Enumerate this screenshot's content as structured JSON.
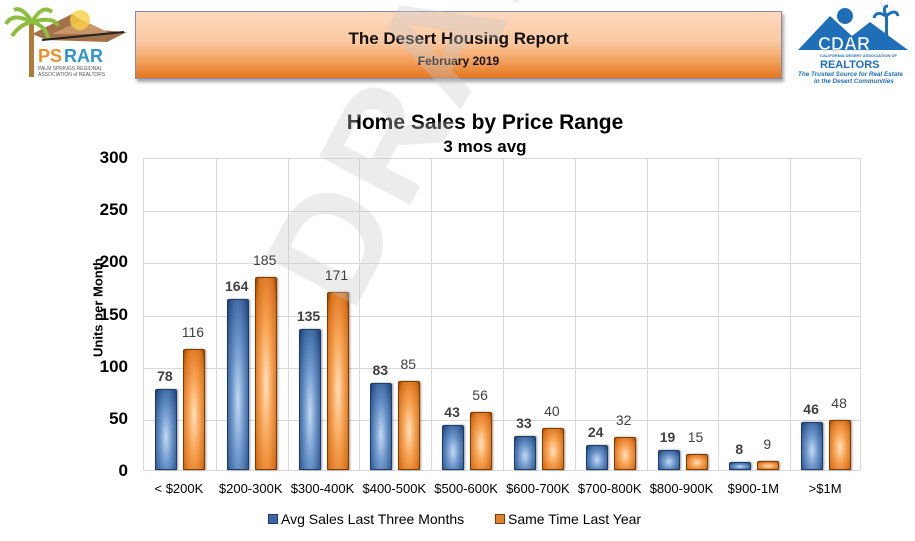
{
  "header": {
    "left_logo": {
      "name": "PSRAR",
      "tagline": "PALM SPRINGS REGIONAL ASSOCIATION of REALTORS"
    },
    "title": "The Desert Housing Report",
    "subtitle": "February 2019",
    "right_logo": {
      "name": "CDAR",
      "org": "CALIFORNIA DESERT ASSOCIATION OF",
      "realtors": "REALTORS",
      "tagline1": "The Trusted Source for Real Estate",
      "tagline2": "in the Desert Communities"
    }
  },
  "watermark": "DRAFT PSRAR",
  "colors": {
    "series1": "#3a66a5",
    "series2": "#e0832b",
    "banner": "#f2a05c"
  },
  "chart_data": {
    "type": "bar",
    "title": "Home Sales by Price Range",
    "subtitle": "3 mos avg",
    "xlabel": "",
    "ylabel": "Units per Month",
    "ylim": [
      0,
      300
    ],
    "yticks": [
      0,
      50,
      100,
      150,
      200,
      250,
      300
    ],
    "grid": true,
    "legend_position": "bottom",
    "categories": [
      "< $200K",
      "$200-300K",
      "$300-400K",
      "$400-500K",
      "$500-600K",
      "$600-700K",
      "$700-800K",
      "$800-900K",
      "$900-1M",
      ">$1M"
    ],
    "series": [
      {
        "name": "Avg Sales Last Three Months",
        "values": [
          78,
          164,
          135,
          83,
          43,
          33,
          24,
          19,
          8,
          46
        ]
      },
      {
        "name": "Same Time Last Year",
        "values": [
          116,
          185,
          171,
          85,
          56,
          40,
          32,
          15,
          9,
          48
        ]
      }
    ]
  }
}
